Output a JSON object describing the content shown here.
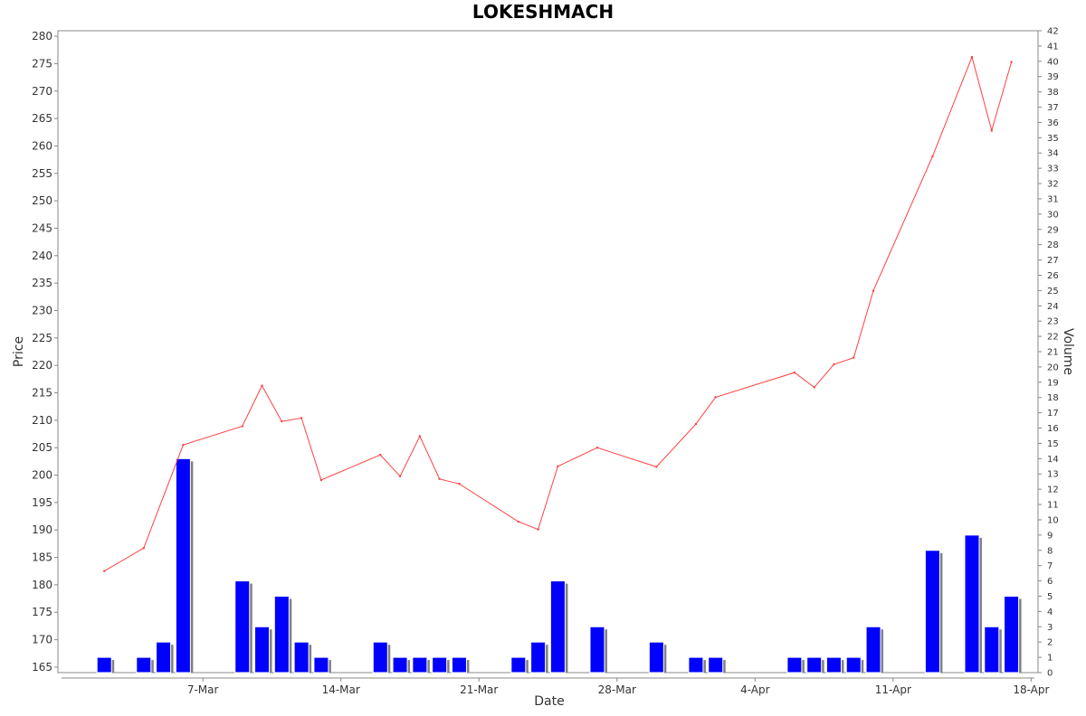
{
  "chart_data": {
    "type": "line+bar",
    "title": "LOKESHMACH",
    "xlabel": "Date",
    "ylabel": "Price",
    "y2label": "Volume",
    "ylim": [
      164,
      281
    ],
    "y2lim": [
      0,
      42
    ],
    "y_ticks": [
      165,
      170,
      175,
      180,
      185,
      190,
      195,
      200,
      205,
      210,
      215,
      220,
      225,
      230,
      235,
      240,
      245,
      250,
      255,
      260,
      265,
      270,
      275,
      280
    ],
    "y2_ticks": [
      0,
      1,
      2,
      3,
      4,
      5,
      6,
      7,
      8,
      9,
      10,
      11,
      12,
      13,
      14,
      15,
      16,
      17,
      18,
      19,
      20,
      21,
      22,
      23,
      24,
      25,
      26,
      27,
      28,
      29,
      30,
      31,
      32,
      33,
      34,
      35,
      36,
      37,
      38,
      39,
      40,
      41,
      42
    ],
    "x_range": [
      "2022-02-28",
      "2022-04-18"
    ],
    "x_ticks": [
      {
        "date": "2022-03-07",
        "label": "7-Mar"
      },
      {
        "date": "2022-03-14",
        "label": "14-Mar"
      },
      {
        "date": "2022-03-21",
        "label": "21-Mar"
      },
      {
        "date": "2022-03-28",
        "label": "28-Mar"
      },
      {
        "date": "2022-04-04",
        "label": "4-Apr"
      },
      {
        "date": "2022-04-11",
        "label": "11-Apr"
      },
      {
        "date": "2022-04-18",
        "label": "18-Apr"
      }
    ],
    "series": [
      {
        "name": "Price",
        "kind": "line",
        "color": "#ff4040",
        "points": [
          {
            "x": "2022-03-02",
            "y": 182.5
          },
          {
            "x": "2022-03-04",
            "y": 186.7
          },
          {
            "x": "2022-03-06",
            "y": 205.5
          },
          {
            "x": "2022-03-09",
            "y": 208.9
          },
          {
            "x": "2022-03-10",
            "y": 216.3
          },
          {
            "x": "2022-03-11",
            "y": 209.8
          },
          {
            "x": "2022-03-12",
            "y": 210.4
          },
          {
            "x": "2022-03-13",
            "y": 199.1
          },
          {
            "x": "2022-03-16",
            "y": 203.7
          },
          {
            "x": "2022-03-17",
            "y": 199.8
          },
          {
            "x": "2022-03-18",
            "y": 207.1
          },
          {
            "x": "2022-03-19",
            "y": 199.3
          },
          {
            "x": "2022-03-20",
            "y": 198.4
          },
          {
            "x": "2022-03-23",
            "y": 191.5
          },
          {
            "x": "2022-03-24",
            "y": 190.1
          },
          {
            "x": "2022-03-25",
            "y": 201.6
          },
          {
            "x": "2022-03-27",
            "y": 205.0
          },
          {
            "x": "2022-03-30",
            "y": 201.5
          },
          {
            "x": "2022-04-01",
            "y": 209.3
          },
          {
            "x": "2022-04-02",
            "y": 214.2
          },
          {
            "x": "2022-04-06",
            "y": 218.7
          },
          {
            "x": "2022-04-07",
            "y": 216.0
          },
          {
            "x": "2022-04-08",
            "y": 220.2
          },
          {
            "x": "2022-04-09",
            "y": 221.4
          },
          {
            "x": "2022-04-10",
            "y": 233.6
          },
          {
            "x": "2022-04-13",
            "y": 258.1
          },
          {
            "x": "2022-04-15",
            "y": 276.2
          },
          {
            "x": "2022-04-16",
            "y": 262.8
          },
          {
            "x": "2022-04-17",
            "y": 275.3
          }
        ]
      },
      {
        "name": "Volume",
        "kind": "bar",
        "color": "#0000ff",
        "shadow": "#808080",
        "points": [
          {
            "x": "2022-03-02",
            "y": 1
          },
          {
            "x": "2022-03-04",
            "y": 1
          },
          {
            "x": "2022-03-05",
            "y": 2
          },
          {
            "x": "2022-03-06",
            "y": 14
          },
          {
            "x": "2022-03-09",
            "y": 6
          },
          {
            "x": "2022-03-10",
            "y": 3
          },
          {
            "x": "2022-03-11",
            "y": 5
          },
          {
            "x": "2022-03-12",
            "y": 2
          },
          {
            "x": "2022-03-13",
            "y": 1
          },
          {
            "x": "2022-03-16",
            "y": 2
          },
          {
            "x": "2022-03-17",
            "y": 1
          },
          {
            "x": "2022-03-18",
            "y": 1
          },
          {
            "x": "2022-03-19",
            "y": 1
          },
          {
            "x": "2022-03-20",
            "y": 1
          },
          {
            "x": "2022-03-23",
            "y": 1
          },
          {
            "x": "2022-03-24",
            "y": 2
          },
          {
            "x": "2022-03-25",
            "y": 6
          },
          {
            "x": "2022-03-27",
            "y": 3
          },
          {
            "x": "2022-03-30",
            "y": 2
          },
          {
            "x": "2022-04-01",
            "y": 1
          },
          {
            "x": "2022-04-02",
            "y": 1
          },
          {
            "x": "2022-04-06",
            "y": 1
          },
          {
            "x": "2022-04-07",
            "y": 1
          },
          {
            "x": "2022-04-08",
            "y": 1
          },
          {
            "x": "2022-04-09",
            "y": 1
          },
          {
            "x": "2022-04-10",
            "y": 3
          },
          {
            "x": "2022-04-13",
            "y": 8
          },
          {
            "x": "2022-04-15",
            "y": 9
          },
          {
            "x": "2022-04-16",
            "y": 3
          },
          {
            "x": "2022-04-17",
            "y": 5
          }
        ]
      }
    ],
    "grid": false,
    "legend": "none"
  }
}
